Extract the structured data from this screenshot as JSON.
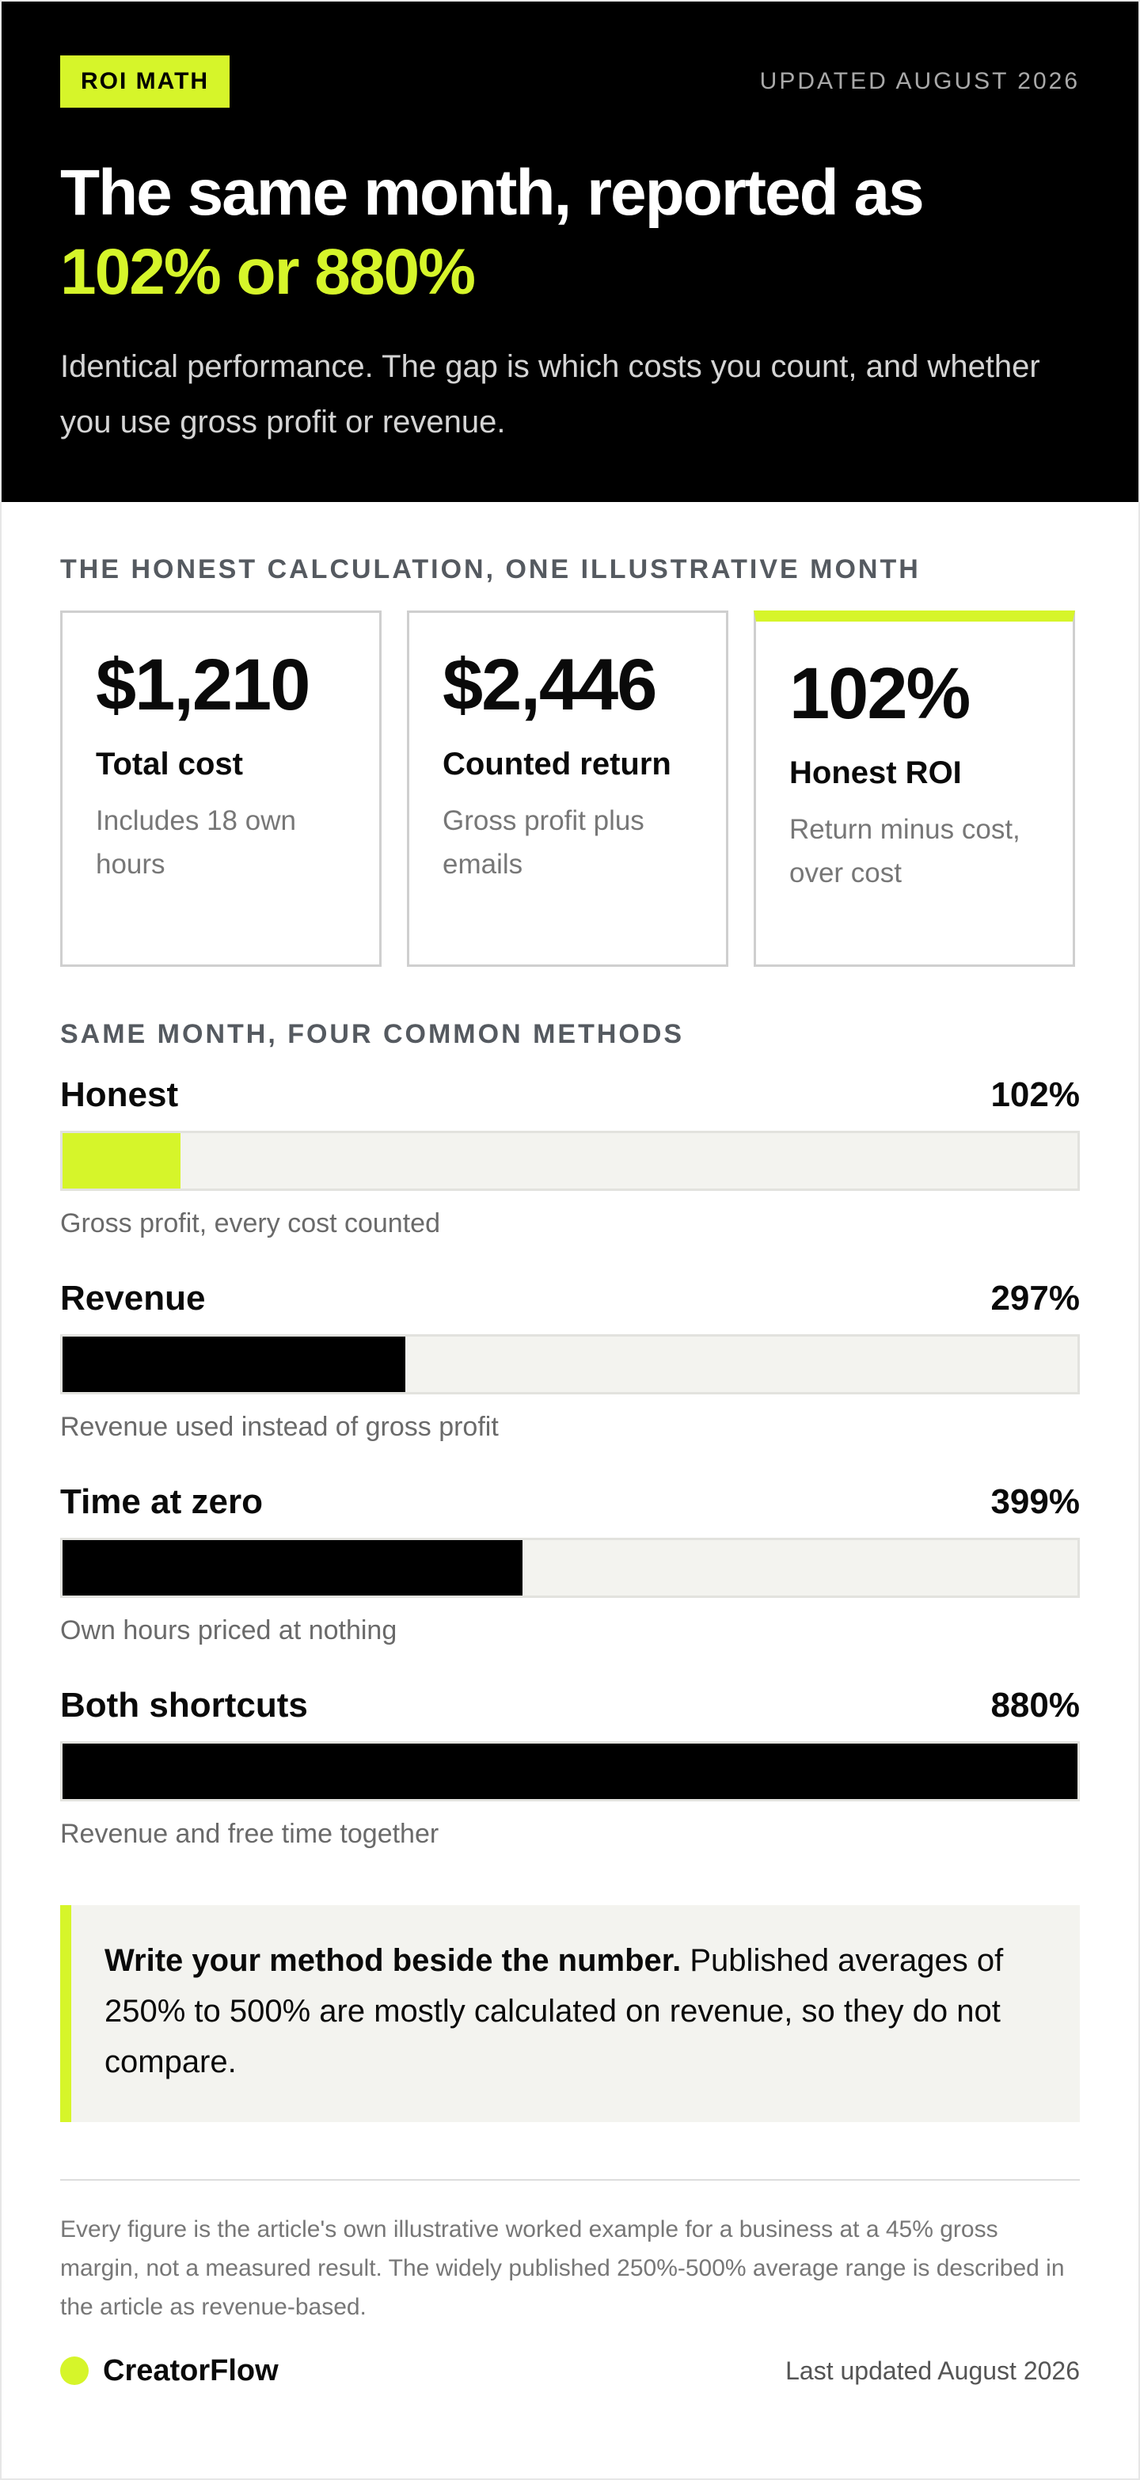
{
  "header": {
    "tag": "ROI MATH",
    "updated": "UPDATED AUGUST 2026",
    "title_line1": "The same month, reported as",
    "title_line2": "102% or 880%",
    "subtitle": "Identical performance. The gap is which costs you count, and whether you use gross profit or revenue."
  },
  "section1": {
    "label": "THE HONEST CALCULATION, ONE ILLUSTRATIVE MONTH",
    "cards": [
      {
        "value": "$1,210",
        "label": "Total cost",
        "sub": "Includes 18 own hours"
      },
      {
        "value": "$2,446",
        "label": "Counted return",
        "sub": "Gross profit plus emails"
      },
      {
        "value": "102%",
        "label": "Honest ROI",
        "sub": "Return minus cost, over cost"
      }
    ]
  },
  "section2": {
    "label": "SAME MONTH, FOUR COMMON METHODS",
    "methods": [
      {
        "name": "Honest",
        "value": "102%",
        "note": "Gross profit, every cost counted",
        "pct": 102,
        "color": "#d6f52a"
      },
      {
        "name": "Revenue",
        "value": "297%",
        "note": "Revenue used instead of gross profit",
        "pct": 297,
        "color": "#000000"
      },
      {
        "name": "Time at zero",
        "value": "399%",
        "note": "Own hours priced at nothing",
        "pct": 399,
        "color": "#000000"
      },
      {
        "name": "Both shortcuts",
        "value": "880%",
        "note": "Revenue and free time together",
        "pct": 880,
        "color": "#000000"
      }
    ],
    "max": 880
  },
  "callout": {
    "bold": "Write your method beside the number.",
    "text": " Published averages of 250% to 500% are mostly calculated on revenue, so they do not compare."
  },
  "footnote": "Every figure is the article's own illustrative worked example for a business at a 45% gross margin, not a measured result. The widely published 250%-500% average range is described in the article as revenue-based.",
  "footer": {
    "brand": "CreatorFlow",
    "last_updated": "Last updated August 2026"
  },
  "colors": {
    "accent": "#d6f52a",
    "dark": "#000000",
    "track": "#f3f3ef"
  }
}
